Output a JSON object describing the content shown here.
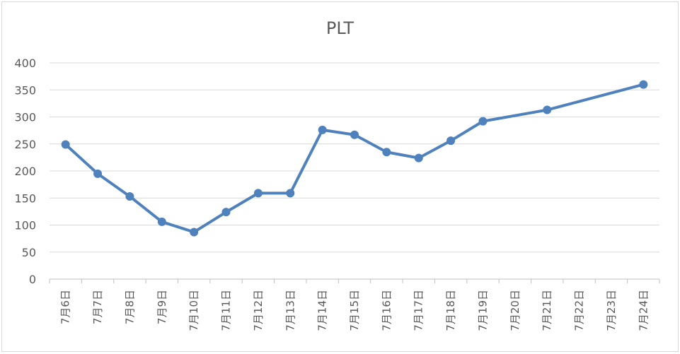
{
  "chart_data": {
    "type": "line",
    "title": "PLT",
    "xlabel": "",
    "ylabel": "",
    "ylim": [
      0,
      400
    ],
    "yticks": [
      0,
      50,
      100,
      150,
      200,
      250,
      300,
      350,
      400
    ],
    "grid": true,
    "legend": "none",
    "categories": [
      "7月6日",
      "7月7日",
      "7月8日",
      "7月9日",
      "7月10日",
      "7月11日",
      "7月12日",
      "7月13日",
      "7月14日",
      "7月15日",
      "7月16日",
      "7月17日",
      "7月18日",
      "7月19日",
      "7月20日",
      "7月21日",
      "7月22日",
      "7月23日",
      "7月24日"
    ],
    "series": [
      {
        "values": [
          249,
          195,
          153,
          106,
          87,
          124,
          159,
          159,
          276,
          267,
          235,
          224,
          256,
          292,
          null,
          313,
          null,
          null,
          360
        ]
      }
    ],
    "colors": {
      "line": "#4f81bd",
      "grid": "#d9d9d9",
      "axis": "#bfbfbf",
      "text": "#595959"
    }
  }
}
